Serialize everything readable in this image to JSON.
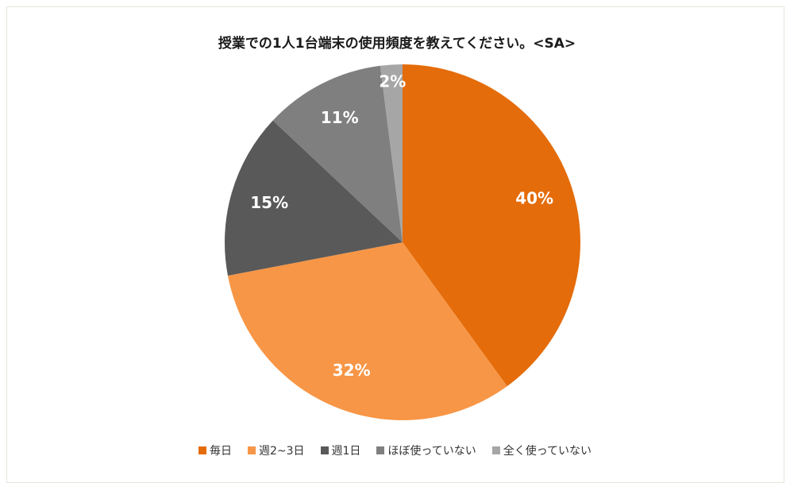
{
  "chart_data": {
    "type": "pie",
    "title": "授業での1人1台端末の使用頻度を教えてください。<SA>",
    "categories": [
      "毎日",
      "週2~3日",
      "週1日",
      "ほぼ使っていない",
      "全く使っていない"
    ],
    "values": [
      40,
      32,
      15,
      11,
      2
    ],
    "value_labels": [
      "40%",
      "32%",
      "15%",
      "11%",
      "2%"
    ],
    "colors": [
      "#e46c0a",
      "#f79646",
      "#595959",
      "#7f7f7f",
      "#a6a6a6"
    ],
    "legend": "bottom"
  }
}
